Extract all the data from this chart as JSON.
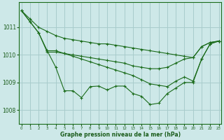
{
  "background_color": "#cde8e8",
  "grid_color": "#a8cccc",
  "line_color": "#1a6b1a",
  "marker_color": "#1a6b1a",
  "xlabel": "Graphe pression niveau de la mer (hPa)",
  "xlabel_color": "#1a5c1a",
  "tick_label_color": "#1a5c1a",
  "ylim": [
    1007.5,
    1011.9
  ],
  "yticks": [
    1008,
    1009,
    1010,
    1011
  ],
  "xlim": [
    -0.3,
    23.3
  ],
  "xticks": [
    0,
    1,
    2,
    3,
    4,
    5,
    6,
    7,
    8,
    9,
    10,
    11,
    12,
    13,
    14,
    15,
    16,
    17,
    18,
    19,
    20,
    21,
    22,
    23
  ],
  "series": [
    {
      "x": [
        0,
        1,
        2,
        3,
        4,
        5,
        6,
        7,
        8,
        9,
        10,
        11,
        12,
        13,
        14,
        15,
        16,
        17,
        18,
        19,
        20,
        21,
        22,
        23
      ],
      "y": [
        1011.6,
        1011.3,
        1011.0,
        1010.85,
        1010.7,
        1010.6,
        1010.55,
        1010.5,
        1010.45,
        1010.4,
        1010.4,
        1010.35,
        1010.3,
        1010.25,
        1010.2,
        1010.15,
        1010.1,
        1010.05,
        1010.0,
        1009.95,
        1009.9,
        1010.3,
        1010.45,
        1010.5
      ],
      "marker": "+"
    },
    {
      "x": [
        0,
        1,
        2,
        3,
        4,
        5,
        6,
        7,
        8,
        9,
        10,
        11,
        12,
        13,
        14,
        15,
        16,
        17,
        18,
        19,
        20,
        21,
        22,
        23
      ],
      "y": [
        1011.6,
        1011.2,
        1010.8,
        1010.1,
        1010.1,
        1010.05,
        1010.0,
        1009.95,
        1009.9,
        1009.85,
        1009.8,
        1009.75,
        1009.7,
        1009.6,
        1009.55,
        1009.5,
        1009.5,
        1009.55,
        1009.7,
        1009.85,
        1009.9,
        1010.3,
        1010.45,
        1010.5
      ],
      "marker": "+"
    },
    {
      "x": [
        0,
        1,
        2,
        3,
        4,
        5,
        6,
        7,
        8,
        9,
        10,
        11,
        12,
        13,
        14,
        15,
        16,
        17,
        18,
        19,
        20,
        21,
        22,
        23
      ],
      "y": [
        1011.6,
        1011.2,
        1010.8,
        1010.15,
        1009.55,
        1008.7,
        1008.7,
        1008.45,
        1008.85,
        1008.87,
        1008.73,
        1008.87,
        1008.87,
        1008.6,
        1008.5,
        1008.2,
        1008.25,
        1008.6,
        1008.8,
        1009.0,
        1009.0,
        1009.85,
        1010.4,
        1010.5
      ],
      "marker": "+"
    },
    {
      "x": [
        3,
        4,
        5,
        6,
        7,
        8,
        9,
        10,
        11,
        12,
        13,
        14,
        15,
        16,
        17,
        18,
        19,
        20,
        21,
        22,
        23
      ],
      "y": [
        1010.15,
        1010.15,
        1010.05,
        1009.95,
        1009.85,
        1009.75,
        1009.65,
        1009.55,
        1009.45,
        1009.35,
        1009.25,
        1009.1,
        1008.95,
        1008.9,
        1008.85,
        1009.05,
        1009.2,
        1009.05,
        1009.85,
        1010.4,
        1010.5
      ],
      "marker": "+"
    }
  ]
}
